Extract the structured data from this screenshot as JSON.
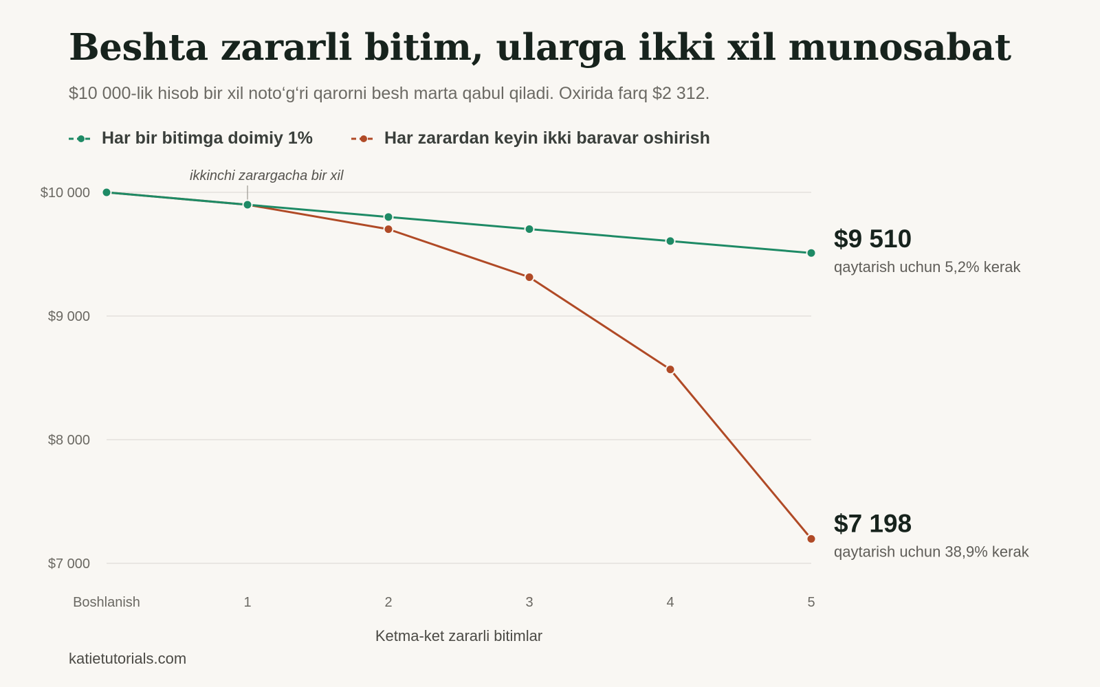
{
  "title": "Beshta zararli bitim, ularga ikki xil munosabat",
  "subtitle": "$10 000-lik hisob bir xil noto‘g‘ri qarorni besh marta qabul qiladi. Oxirida farq $2 312.",
  "footer": "katietutorials.com",
  "colors": {
    "fixed": "#1e8a65",
    "doubling": "#b04a26",
    "grid": "#e4e1dc",
    "background": "#f9f7f3"
  },
  "chart_data": {
    "type": "line",
    "xlabel": "Ketma-ket zararli bitimlar",
    "ylabel": "",
    "categories": [
      "Boshlanish",
      "1",
      "2",
      "3",
      "4",
      "5"
    ],
    "ylim": [
      7000,
      10000
    ],
    "yticks": [
      {
        "value": 10000,
        "label": "$10 000"
      },
      {
        "value": 9000,
        "label": "$9 000"
      },
      {
        "value": 8000,
        "label": "$8 000"
      },
      {
        "value": 7000,
        "label": "$7 000"
      }
    ],
    "grid": true,
    "legend": "top-left",
    "series": [
      {
        "name": "Har bir bitimga doimiy 1%",
        "color": "#1e8a65",
        "values": [
          10000,
          9900,
          9801,
          9703,
          9606,
          9510
        ],
        "end_label": "$9 510",
        "end_note": "qaytarish uchun 5,2% kerak"
      },
      {
        "name": "Har zarardan keyin ikki baravar oshirish",
        "color": "#b04a26",
        "values": [
          10000,
          9900,
          9702,
          9314,
          8568,
          7198
        ],
        "end_label": "$7 198",
        "end_note": "qaytarish uchun 38,9% kerak"
      }
    ],
    "annotations": [
      {
        "x": "1",
        "text": "ikkinchi zarargacha bir xil"
      }
    ]
  }
}
